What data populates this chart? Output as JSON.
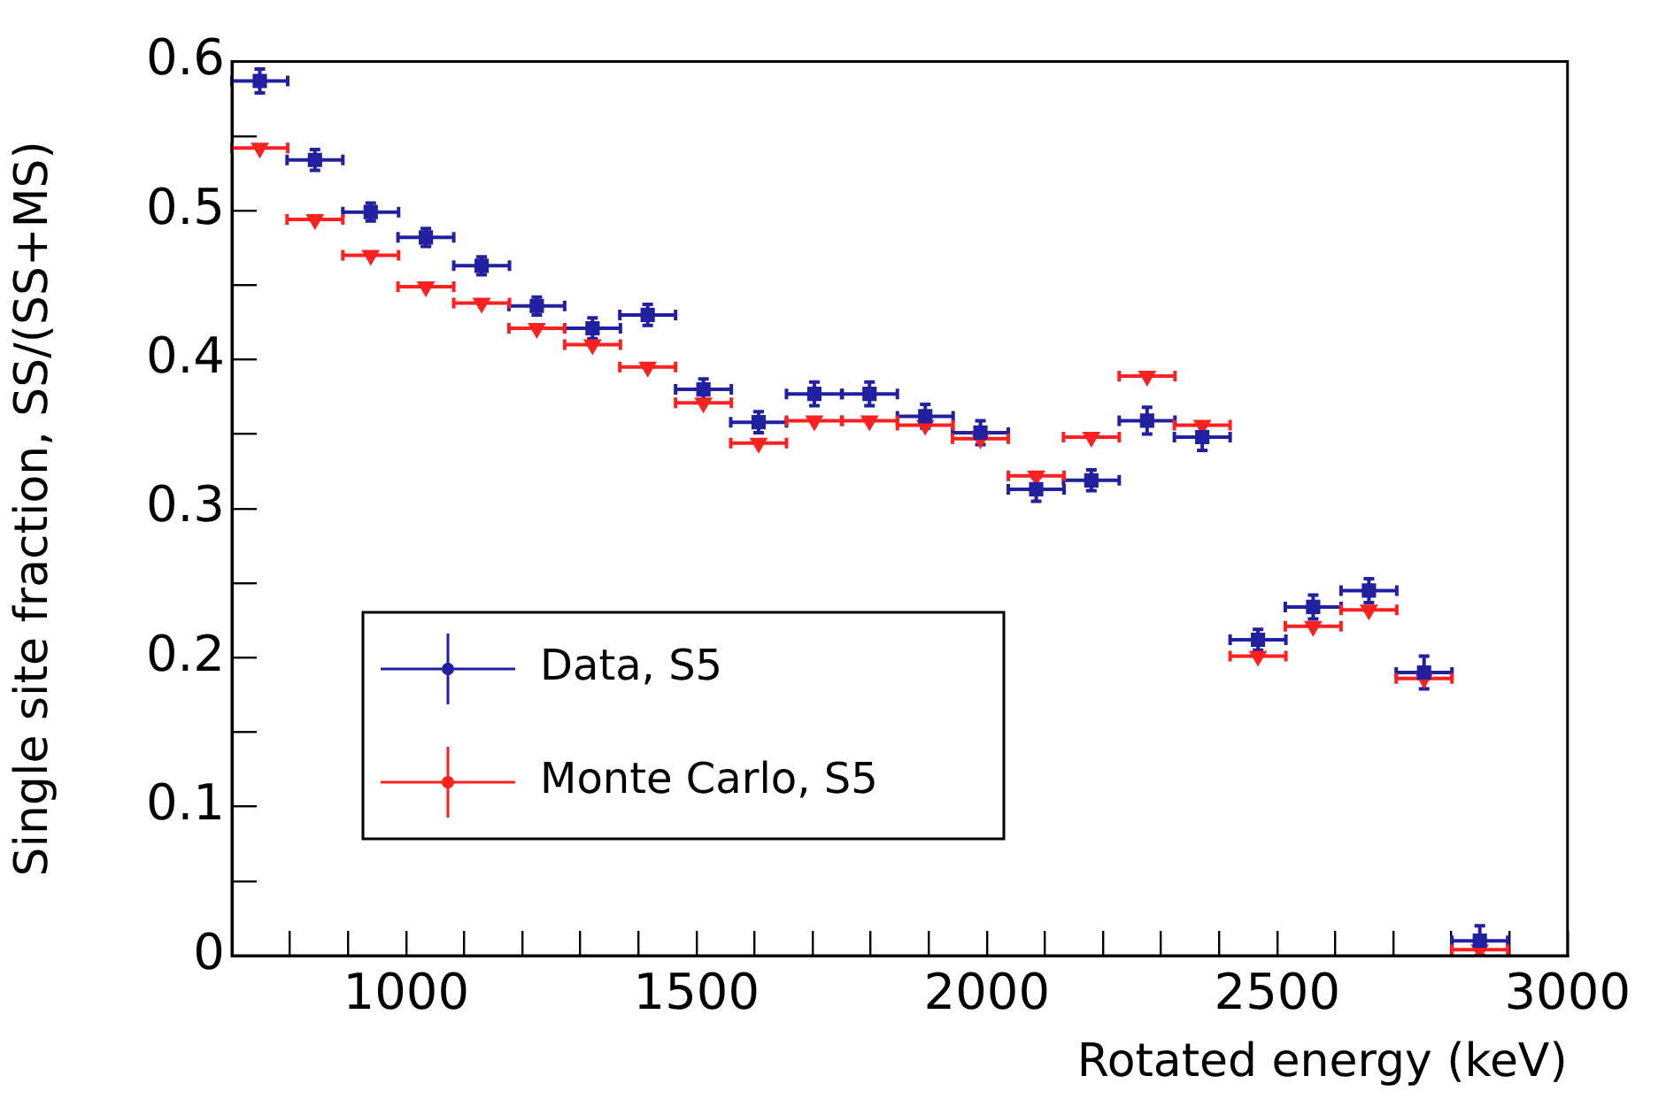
{
  "chart_data": {
    "type": "scatter",
    "xlabel": "Rotated energy (keV)",
    "ylabel": "Single site fraction, SS/(SS+MS)",
    "xlim": [
      700,
      3000
    ],
    "xticks": [
      {
        "value": 800,
        "label": null
      },
      {
        "value": 900,
        "label": null
      },
      1000,
      {
        "value": 1100,
        "label": null
      },
      {
        "value": 1200,
        "label": null
      },
      {
        "value": 1300,
        "label": null
      },
      {
        "value": 1400,
        "label": null
      },
      1500,
      {
        "value": 1600,
        "label": null
      },
      {
        "value": 1700,
        "label": null
      },
      {
        "value": 1800,
        "label": null
      },
      {
        "value": 1900,
        "label": null
      },
      2000,
      {
        "value": 2100,
        "label": null
      },
      {
        "value": 2200,
        "label": null
      },
      {
        "value": 2300,
        "label": null
      },
      {
        "value": 2400,
        "label": null
      },
      2500,
      {
        "value": 2600,
        "label": null
      },
      {
        "value": 2700,
        "label": null
      },
      {
        "value": 2800,
        "label": null
      },
      {
        "value": 2900,
        "label": null
      },
      3000
    ],
    "ylim": [
      0,
      0.6
    ],
    "yticks": [
      0,
      {
        "value": 0.05,
        "label": null
      },
      0.1,
      {
        "value": 0.15,
        "label": null
      },
      0.2,
      {
        "value": 0.25,
        "label": null
      },
      0.3,
      {
        "value": 0.35,
        "label": null
      },
      0.4,
      {
        "value": 0.45,
        "label": null
      },
      0.5,
      {
        "value": 0.55,
        "label": null
      },
      0.6
    ],
    "x": [
      748,
      843,
      939,
      1034,
      1130,
      1225,
      1321,
      1416,
      1512,
      1607,
      1703,
      1798,
      1894,
      1989,
      2085,
      2180,
      2276,
      2371,
      2467,
      2562,
      2658,
      2753,
      2849
    ],
    "grid": false,
    "legend": "bottom left",
    "series": [
      {
        "name": "Data, S5",
        "color": "#2020a0",
        "marker": "square",
        "values": [
          0.587,
          0.534,
          0.499,
          0.482,
          0.463,
          0.436,
          0.421,
          0.43,
          0.38,
          0.358,
          0.377,
          0.377,
          0.362,
          0.351,
          0.313,
          0.319,
          0.359,
          0.348,
          0.212,
          0.234,
          0.245,
          0.19,
          0.01
        ],
        "errors": [
          0.008,
          0.007,
          0.006,
          0.006,
          0.006,
          0.006,
          0.007,
          0.007,
          0.007,
          0.007,
          0.008,
          0.008,
          0.008,
          0.008,
          0.008,
          0.007,
          0.009,
          0.009,
          0.007,
          0.008,
          0.008,
          0.011,
          0.01
        ],
        "xerrors": [
          48,
          48,
          48,
          48,
          48,
          48,
          48,
          48,
          48,
          48,
          48,
          48,
          48,
          48,
          48,
          48,
          48,
          48,
          48,
          48,
          48,
          48,
          48
        ]
      },
      {
        "name": "Monte Carlo, S5",
        "color": "#ff2020",
        "marker": "triangle",
        "values": [
          0.542,
          0.494,
          0.47,
          0.449,
          0.438,
          0.421,
          0.41,
          0.395,
          0.371,
          0.344,
          0.359,
          0.359,
          0.356,
          0.347,
          0.322,
          0.348,
          0.389,
          0.356,
          0.201,
          0.221,
          0.232,
          0.186,
          0.004
        ],
        "xerrors": [
          48,
          48,
          48,
          48,
          48,
          48,
          48,
          48,
          48,
          48,
          48,
          48,
          48,
          48,
          48,
          48,
          48,
          48,
          48,
          48,
          48,
          48,
          48
        ]
      }
    ]
  }
}
